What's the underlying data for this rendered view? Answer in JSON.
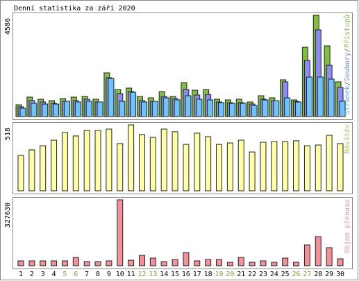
{
  "chart_data": [
    {
      "type": "bar",
      "title": "Denní statistika za září 2020",
      "categories": [
        "1",
        "2",
        "3",
        "4",
        "5",
        "6",
        "7",
        "8",
        "9",
        "10",
        "11",
        "12",
        "13",
        "14",
        "15",
        "16",
        "17",
        "18",
        "19",
        "20",
        "21",
        "22",
        "23",
        "24",
        "25",
        "26",
        "27",
        "28",
        "29",
        "30"
      ],
      "highlight_indices": [
        4,
        5,
        11,
        12,
        18,
        19,
        25,
        26
      ],
      "highlight_color": "#7aa83c",
      "ylim": [
        0,
        4586
      ],
      "yticks": [
        4586
      ],
      "legend_separator": "/",
      "series": [
        {
          "name": "Přístupů",
          "color": "#80c040",
          "legend_color": "#80c040",
          "values": [
            534,
            880,
            785,
            722,
            817,
            880,
            911,
            785,
            1979,
            1225,
            1288,
            911,
            848,
            1131,
            911,
            1539,
            1194,
            1225,
            785,
            754,
            785,
            660,
            942,
            848,
            1665,
            754,
            3141,
            4586,
            3204,
            1571
          ]
        },
        {
          "name": "Soubory",
          "color": "#8c8cf0",
          "legend_color": "#6a8ad8",
          "values": [
            440,
            722,
            660,
            597,
            691,
            722,
            785,
            660,
            1759,
            1037,
            1131,
            722,
            691,
            911,
            817,
            1225,
            974,
            1005,
            660,
            628,
            628,
            565,
            785,
            722,
            1571,
            691,
            2544,
            3926,
            2324,
            1319
          ]
        },
        {
          "name": "Stránek",
          "color": "#6cc4f8",
          "legend_color": "#5aa8e8",
          "values": [
            377,
            597,
            565,
            565,
            691,
            660,
            691,
            660,
            1728,
            691,
            1099,
            660,
            691,
            848,
            754,
            942,
            785,
            754,
            628,
            597,
            597,
            503,
            754,
            722,
            848,
            660,
            1790,
            1790,
            1696,
            691
          ]
        }
      ]
    },
    {
      "type": "bar",
      "ylim": [
        0,
        518
      ],
      "yticks": [
        518
      ],
      "series": [
        {
          "name": "Návštěv",
          "color": "#ffffa8",
          "legend_color": "#a8c850",
          "values": [
            278,
            322,
            354,
            398,
            458,
            431,
            474,
            474,
            485,
            371,
            518,
            442,
            420,
            485,
            464,
            365,
            453,
            425,
            365,
            376,
            398,
            305,
            382,
            387,
            387,
            393,
            354,
            360,
            436,
            371
          ]
        }
      ]
    },
    {
      "type": "bar",
      "ylim": [
        0,
        327630
      ],
      "yticks": [
        327630
      ],
      "series": [
        {
          "name": "Objem přenosu",
          "color": "#f4909a",
          "legend_color": "#f4909a",
          "values": [
            24143,
            24143,
            24143,
            24143,
            24143,
            41388,
            20694,
            20694,
            24143,
            327630,
            27592,
            51735,
            37939,
            20694,
            31041,
            65531,
            24143,
            31041,
            31041,
            17245,
            41388,
            17245,
            24143,
            17245,
            37939,
            17245,
            103470,
            144858,
            89674,
            34490
          ]
        }
      ]
    }
  ]
}
